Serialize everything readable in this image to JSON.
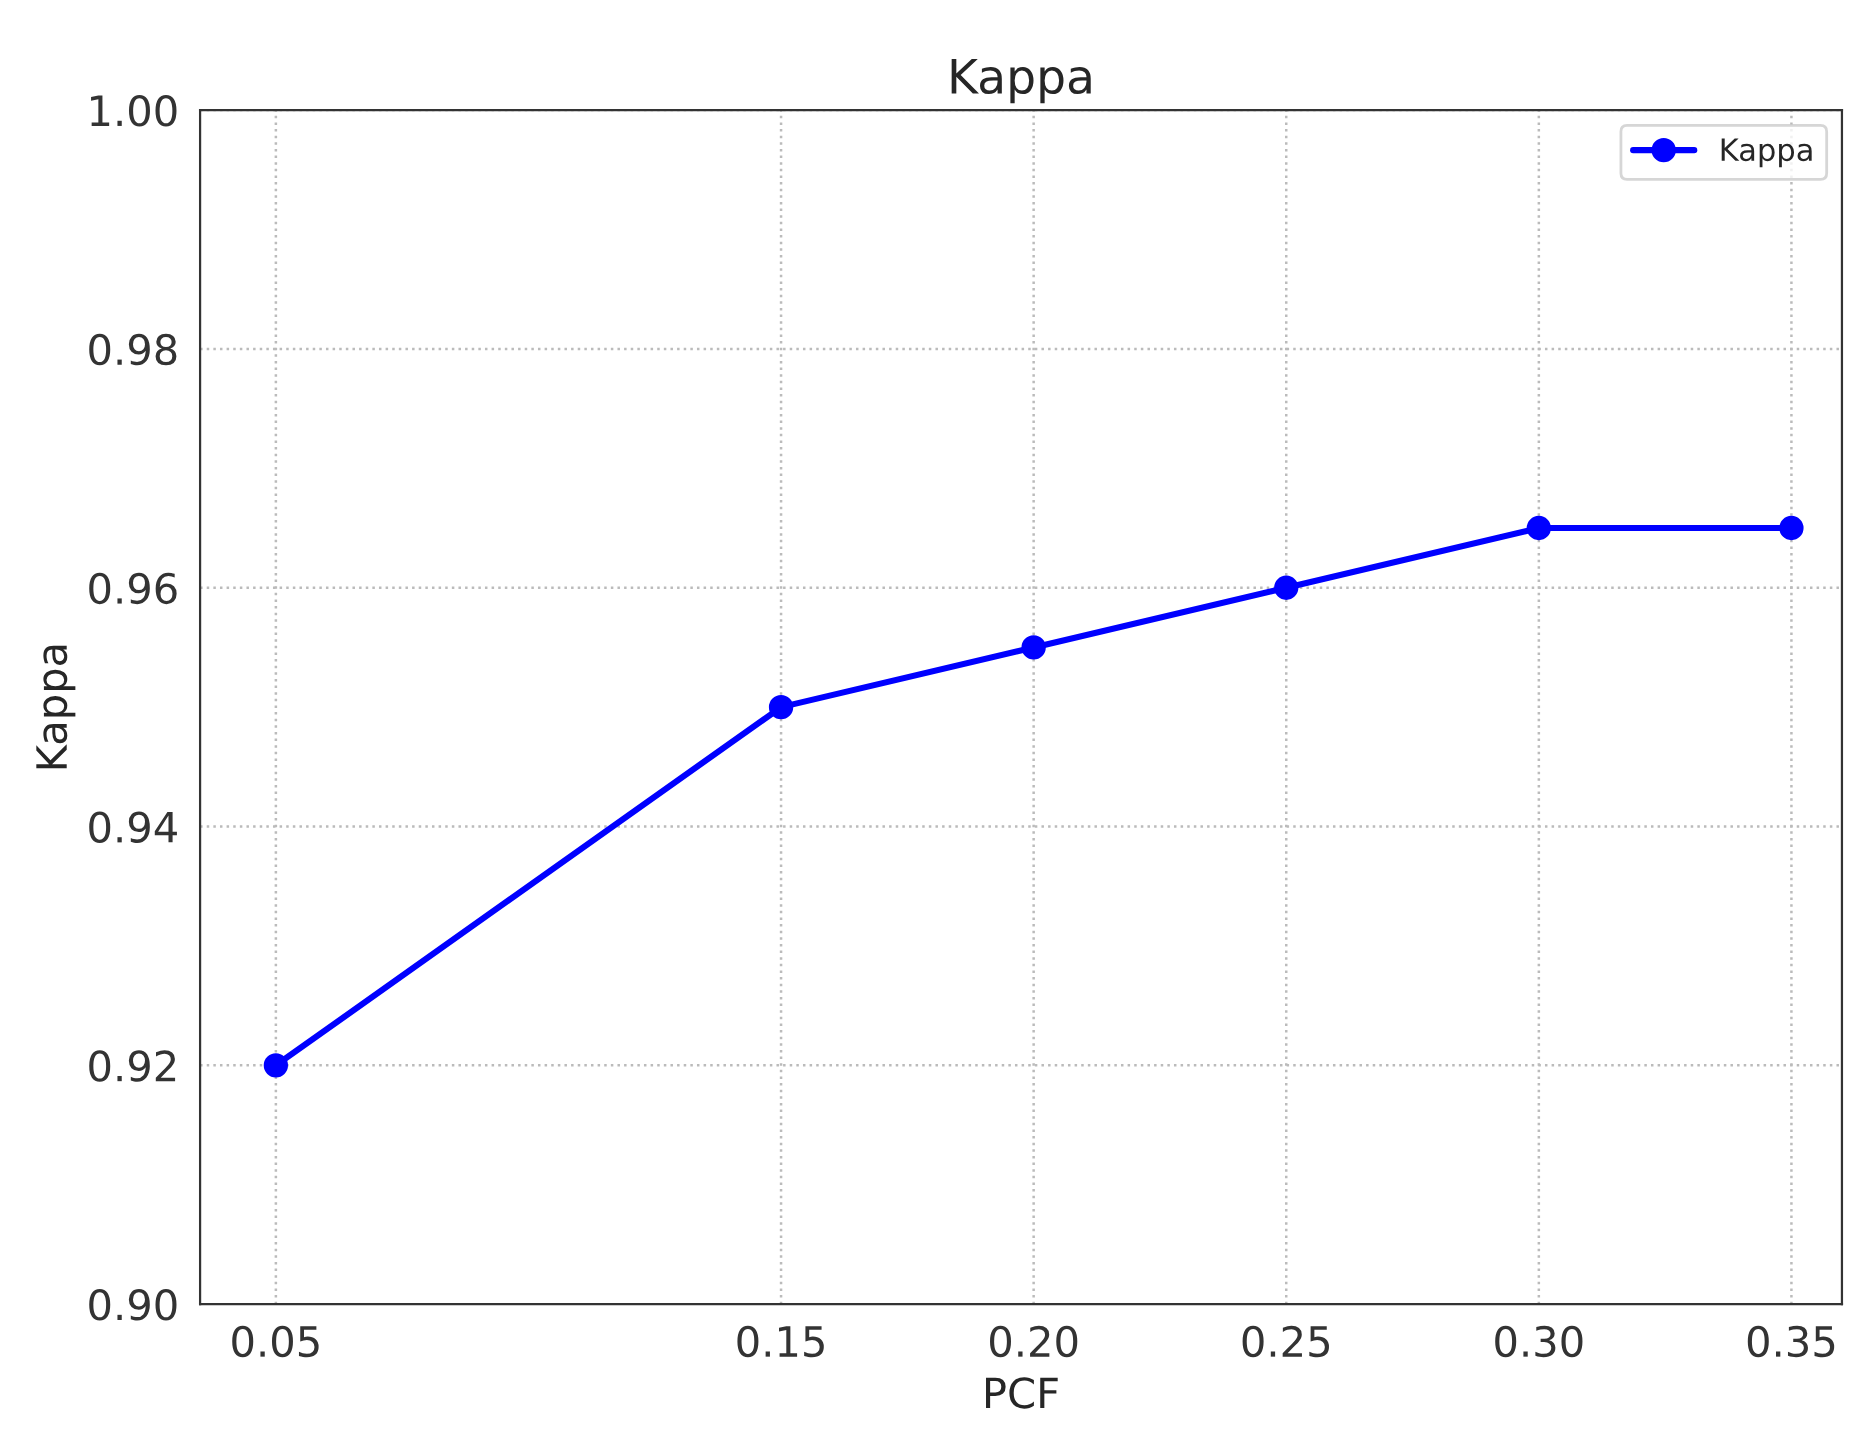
{
  "chart_data": {
    "type": "line",
    "title": "Kappa",
    "xlabel": "PCF",
    "ylabel": "Kappa",
    "x": [
      0.05,
      0.15,
      0.2,
      0.25,
      0.3,
      0.35
    ],
    "series": [
      {
        "name": "Kappa",
        "color": "#0000ff",
        "values": [
          0.92,
          0.95,
          0.955,
          0.96,
          0.965,
          0.965
        ]
      }
    ],
    "xlim": [
      0.035,
      0.36
    ],
    "xticks": [
      {
        "value": 0.05,
        "label": "0.05"
      },
      {
        "value": 0.15,
        "label": "0.15"
      },
      {
        "value": 0.2,
        "label": "0.20"
      },
      {
        "value": 0.25,
        "label": "0.25"
      },
      {
        "value": 0.3,
        "label": "0.30"
      },
      {
        "value": 0.35,
        "label": "0.35"
      }
    ],
    "ylim": [
      0.9,
      1.0
    ],
    "yticks": [
      {
        "value": 0.9,
        "label": "0.90"
      },
      {
        "value": 0.92,
        "label": "0.92"
      },
      {
        "value": 0.94,
        "label": "0.94"
      },
      {
        "value": 0.96,
        "label": "0.96"
      },
      {
        "value": 0.98,
        "label": "0.98"
      },
      {
        "value": 1.0,
        "label": "1.00"
      }
    ],
    "grid": true,
    "legend": "top right",
    "marker": "circle",
    "line_style": "solid"
  }
}
